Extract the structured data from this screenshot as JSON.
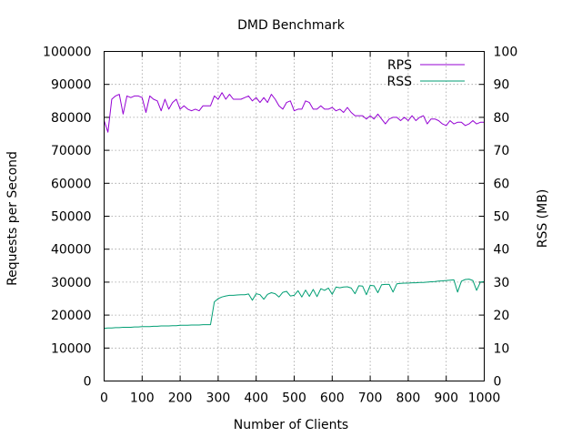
{
  "chart_data": {
    "type": "line",
    "title": "DMD Benchmark",
    "xlabel": "Number of Clients",
    "ylabel": "Requests per Second",
    "y2label": "RSS (MB)",
    "xlim": [
      0,
      1000
    ],
    "ylim": [
      0,
      100000
    ],
    "y2lim": [
      0,
      100
    ],
    "xticks": [
      "0",
      "100",
      "200",
      "300",
      "400",
      "500",
      "600",
      "700",
      "800",
      "900",
      "1000"
    ],
    "yticks": [
      "0",
      "10000",
      "20000",
      "30000",
      "40000",
      "50000",
      "60000",
      "70000",
      "80000",
      "90000",
      "100000"
    ],
    "y2ticks": [
      "0",
      "10",
      "20",
      "30",
      "40",
      "50",
      "60",
      "70",
      "80",
      "90",
      "100"
    ],
    "grid": true,
    "legend_position": "top-right",
    "series": [
      {
        "name": "RPS",
        "axis": "left",
        "color": "#9400d3",
        "x": [
          0,
          10,
          20,
          30,
          40,
          50,
          60,
          70,
          80,
          90,
          100,
          110,
          120,
          130,
          140,
          150,
          160,
          170,
          180,
          190,
          200,
          210,
          220,
          230,
          240,
          250,
          260,
          270,
          280,
          290,
          300,
          310,
          320,
          330,
          340,
          350,
          360,
          370,
          380,
          390,
          400,
          410,
          420,
          430,
          440,
          450,
          460,
          470,
          480,
          490,
          500,
          510,
          520,
          530,
          540,
          550,
          560,
          570,
          580,
          590,
          600,
          610,
          620,
          630,
          640,
          650,
          660,
          670,
          680,
          690,
          700,
          710,
          720,
          730,
          740,
          750,
          760,
          770,
          780,
          790,
          800,
          810,
          820,
          830,
          840,
          850,
          860,
          870,
          880,
          890,
          900,
          910,
          920,
          930,
          940,
          950,
          960,
          970,
          980,
          990,
          1000
        ],
        "y": [
          79000,
          75500,
          85500,
          86500,
          87000,
          81000,
          86500,
          86000,
          86500,
          86500,
          86000,
          81500,
          86500,
          85500,
          85000,
          82000,
          85500,
          82500,
          84500,
          85500,
          82500,
          83500,
          82500,
          82000,
          82500,
          82000,
          83500,
          83500,
          83500,
          86500,
          85500,
          87500,
          85500,
          87000,
          85500,
          85500,
          85500,
          86000,
          86500,
          85000,
          86000,
          84500,
          86000,
          84500,
          87000,
          85500,
          83500,
          82500,
          84500,
          85000,
          82000,
          82500,
          82500,
          85000,
          84500,
          82500,
          82500,
          83500,
          82500,
          82500,
          83000,
          82000,
          82500,
          81500,
          83000,
          81500,
          80500,
          80500,
          80500,
          79500,
          80500,
          79500,
          81000,
          79500,
          78000,
          79500,
          80000,
          80000,
          79000,
          80000,
          79000,
          80500,
          79000,
          80000,
          80500,
          78000,
          79500,
          79500,
          79000,
          78000,
          77500,
          79000,
          78000,
          78500,
          78500,
          77500,
          78000,
          79000,
          78000,
          78500,
          78500
        ]
      },
      {
        "name": "RSS",
        "axis": "right",
        "color": "#009e73",
        "x": [
          0,
          10,
          20,
          30,
          40,
          50,
          60,
          70,
          80,
          90,
          100,
          110,
          120,
          130,
          140,
          150,
          160,
          170,
          180,
          190,
          200,
          210,
          220,
          230,
          240,
          250,
          260,
          270,
          280,
          290,
          300,
          310,
          320,
          330,
          340,
          350,
          360,
          370,
          380,
          390,
          400,
          410,
          420,
          430,
          440,
          450,
          460,
          470,
          480,
          490,
          500,
          510,
          520,
          530,
          540,
          550,
          560,
          570,
          580,
          590,
          600,
          610,
          620,
          630,
          640,
          650,
          660,
          670,
          680,
          690,
          700,
          710,
          720,
          730,
          740,
          750,
          760,
          770,
          780,
          790,
          800,
          810,
          820,
          830,
          840,
          850,
          860,
          870,
          880,
          890,
          900,
          910,
          920,
          930,
          940,
          950,
          960,
          970,
          980,
          990,
          1000
        ],
        "y": [
          16.0,
          16.1,
          16.1,
          16.2,
          16.2,
          16.3,
          16.3,
          16.3,
          16.4,
          16.4,
          16.5,
          16.5,
          16.5,
          16.6,
          16.6,
          16.7,
          16.7,
          16.7,
          16.8,
          16.8,
          16.9,
          16.9,
          16.9,
          17.0,
          17.0,
          17.0,
          17.1,
          17.1,
          17.1,
          24.0,
          25.0,
          25.5,
          25.8,
          26.0,
          26.0,
          26.1,
          26.2,
          26.2,
          26.4,
          24.5,
          26.5,
          26.2,
          24.8,
          26.3,
          26.8,
          26.5,
          25.5,
          26.9,
          27.2,
          25.8,
          26.0,
          27.4,
          25.5,
          27.6,
          25.7,
          27.8,
          25.6,
          28.0,
          27.5,
          28.2,
          26.3,
          28.5,
          28.3,
          28.5,
          28.6,
          28.2,
          26.5,
          28.9,
          28.8,
          26.2,
          29.0,
          28.9,
          26.8,
          29.2,
          29.3,
          29.3,
          27.0,
          29.5,
          29.6,
          29.7,
          29.7,
          29.8,
          29.8,
          29.9,
          29.9,
          30.0,
          30.1,
          30.2,
          30.3,
          30.4,
          30.5,
          30.6,
          30.7,
          27.0,
          30.3,
          30.8,
          30.9,
          30.5,
          27.5,
          30.0,
          30.2
        ]
      }
    ]
  }
}
